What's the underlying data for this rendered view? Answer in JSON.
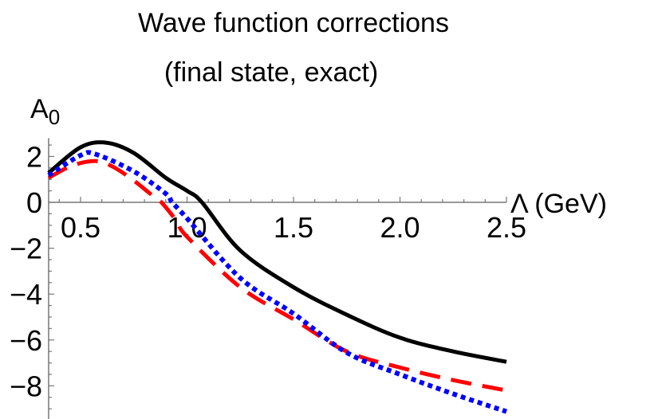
{
  "chart_data": {
    "type": "line",
    "title": "Wave function corrections",
    "subtitle": "(final state, exact)",
    "xlabel": "Λ (GeV)",
    "ylabel": "A",
    "ylabel_sub": "0",
    "xlim": [
      0.35,
      2.5
    ],
    "ylim": [
      -9.4,
      2.8
    ],
    "grid": false,
    "x_ticks": [
      "0.5",
      "1.0",
      "1.5",
      "2.0",
      "2.5"
    ],
    "y_ticks": [
      "2",
      "0",
      "−2",
      "−4",
      "−6",
      "−8"
    ],
    "series": [
      {
        "style": "solid",
        "color": "#000000",
        "points": [
          [
            0.35,
            1.28
          ],
          [
            0.5,
            2.4
          ],
          [
            0.62,
            2.6
          ],
          [
            0.75,
            2.15
          ],
          [
            0.9,
            1.07
          ],
          [
            1.0,
            0.5
          ],
          [
            1.07,
            0.0
          ],
          [
            1.25,
            -2.1
          ],
          [
            1.5,
            -3.7
          ],
          [
            1.75,
            -4.9
          ],
          [
            2.0,
            -5.9
          ],
          [
            2.25,
            -6.5
          ],
          [
            2.5,
            -6.95
          ]
        ]
      },
      {
        "style": "dashed",
        "color": "#ff0000",
        "points": [
          [
            0.35,
            1.07
          ],
          [
            0.46,
            1.6
          ],
          [
            0.57,
            1.8
          ],
          [
            0.65,
            1.56
          ],
          [
            0.75,
            0.95
          ],
          [
            0.85,
            0.2
          ],
          [
            0.88,
            0.0
          ],
          [
            0.95,
            -0.8
          ],
          [
            1.0,
            -1.5
          ],
          [
            1.25,
            -3.7
          ],
          [
            1.5,
            -5.1
          ],
          [
            1.75,
            -6.5
          ],
          [
            2.0,
            -7.2
          ],
          [
            2.25,
            -7.75
          ],
          [
            2.5,
            -8.2
          ]
        ]
      },
      {
        "style": "dotted",
        "color": "#0000ff",
        "points": [
          [
            0.35,
            1.18
          ],
          [
            0.5,
            2.05
          ],
          [
            0.57,
            2.1
          ],
          [
            0.75,
            1.35
          ],
          [
            0.9,
            0.38
          ],
          [
            0.93,
            0.0
          ],
          [
            1.0,
            -0.7
          ],
          [
            1.25,
            -3.3
          ],
          [
            1.5,
            -4.85
          ],
          [
            1.75,
            -6.55
          ],
          [
            2.0,
            -7.5
          ],
          [
            2.25,
            -8.35
          ],
          [
            2.5,
            -9.12
          ]
        ]
      }
    ]
  }
}
